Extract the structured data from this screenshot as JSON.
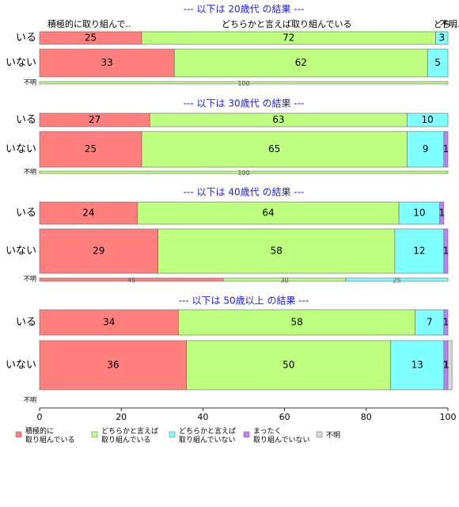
{
  "chart_data": {
    "type": "stacked_barh",
    "header_labels": [
      "積極的に取り組んで..",
      "どちらかと言えば取り組んでいる",
      "どち..",
      "不明.."
    ],
    "categories": [
      "いる",
      "いない",
      "不明"
    ],
    "series": [
      {
        "name": "積極的に\n取り組んでいる",
        "color": "#ff7f7f"
      },
      {
        "name": "どちらかと言えば\n取り組んでいる",
        "color": "#bfff7f"
      },
      {
        "name": "どちらかと言えば\n取り組んでいない",
        "color": "#7fffff"
      },
      {
        "name": "まったく\n取り組んでいない",
        "color": "#bf7fff"
      },
      {
        "name": "不明",
        "color": "#d9d9d9"
      }
    ],
    "xlim": [
      0,
      100
    ],
    "xticks": [
      0,
      20,
      40,
      60,
      80,
      100
    ],
    "panels": [
      {
        "title": "--- 以下は 20歳代 の結果 ---",
        "values": [
          [
            25,
            33,
            null
          ],
          [
            72,
            62,
            100
          ],
          [
            3,
            5,
            null
          ],
          [
            null,
            null,
            null
          ],
          [
            null,
            null,
            null
          ]
        ]
      },
      {
        "title": "--- 以下は 30歳代 の結果 ---",
        "values": [
          [
            27,
            25,
            null
          ],
          [
            63,
            65,
            100
          ],
          [
            10,
            9,
            null
          ],
          [
            null,
            1,
            null
          ],
          [
            null,
            null,
            null
          ]
        ]
      },
      {
        "title": "--- 以下は 40歳代 の結果 ---",
        "values": [
          [
            24,
            29,
            45
          ],
          [
            64,
            58,
            30
          ],
          [
            10,
            12,
            25
          ],
          [
            1,
            1,
            null
          ],
          [
            null,
            null,
            null
          ]
        ]
      },
      {
        "title": "--- 以下は 50歳以上 の結果 ---",
        "values": [
          [
            34,
            36,
            null
          ],
          [
            58,
            50,
            null
          ],
          [
            7,
            13,
            null
          ],
          [
            1,
            1,
            null
          ],
          [
            null,
            1,
            null
          ]
        ]
      }
    ]
  }
}
